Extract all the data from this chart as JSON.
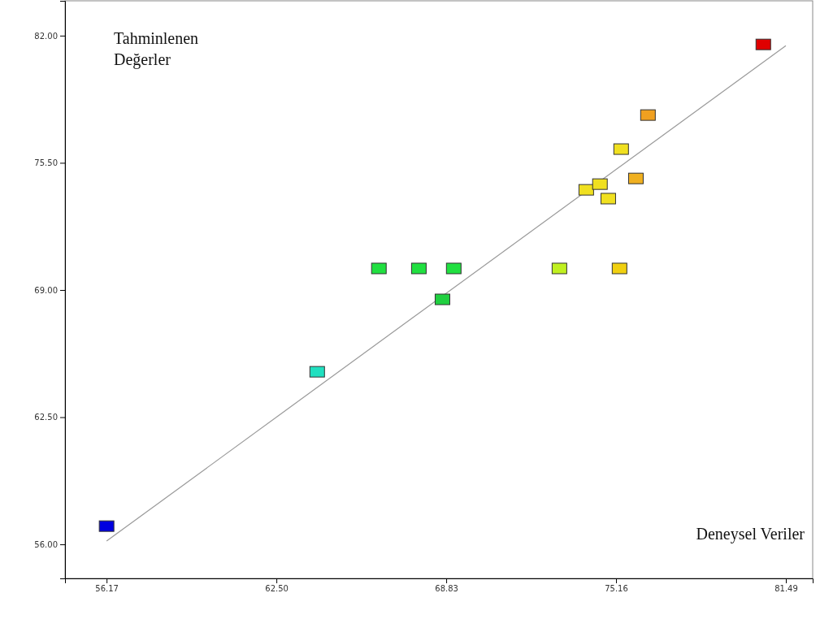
{
  "chart_data": {
    "type": "scatter",
    "xlabel": "Deneysel Veriler",
    "ylabel": "Tahminlenen Değerler",
    "grid": false,
    "xlim": [
      54.62,
      82.49
    ],
    "ylim": [
      54.26,
      83.78
    ],
    "xticks": [
      56.17,
      {
        "value": 62.5,
        "label": "62.50"
      },
      68.83,
      75.16,
      81.49
    ],
    "yticks": [
      {
        "value": 56,
        "label": "56.00"
      },
      {
        "value": 62.5,
        "label": "62.50"
      },
      {
        "value": 69,
        "label": "69.00"
      },
      {
        "value": 75.5,
        "label": "75.50"
      },
      {
        "value": 82,
        "label": "82.00"
      }
    ],
    "series": [
      {
        "marker": "square",
        "x": [
          56.17,
          64.02,
          66.32,
          67.81,
          69.11,
          68.69,
          73.05,
          75.29,
          74.05,
          74.56,
          74.87,
          75.35,
          75.9,
          76.35,
          80.65
        ],
        "values": [
          56.91,
          64.8,
          70.08,
          70.08,
          70.08,
          68.5,
          70.08,
          70.08,
          74.1,
          74.39,
          73.65,
          76.18,
          74.68,
          77.92,
          81.53
        ],
        "colors": [
          "#0000e0",
          "#20e0c0",
          "#20e040",
          "#20e040",
          "#20e040",
          "#20d040",
          "#c0f020",
          "#f0d010",
          "#f0e020",
          "#f0e020",
          "#f0e020",
          "#f0e020",
          "#f0b020",
          "#f0a020",
          "#e00000"
        ]
      },
      {
        "type": "line",
        "x": [
          56.17,
          81.49
        ],
        "values": [
          56.17,
          81.49
        ],
        "color": "#999999",
        "marker": "none"
      }
    ]
  }
}
